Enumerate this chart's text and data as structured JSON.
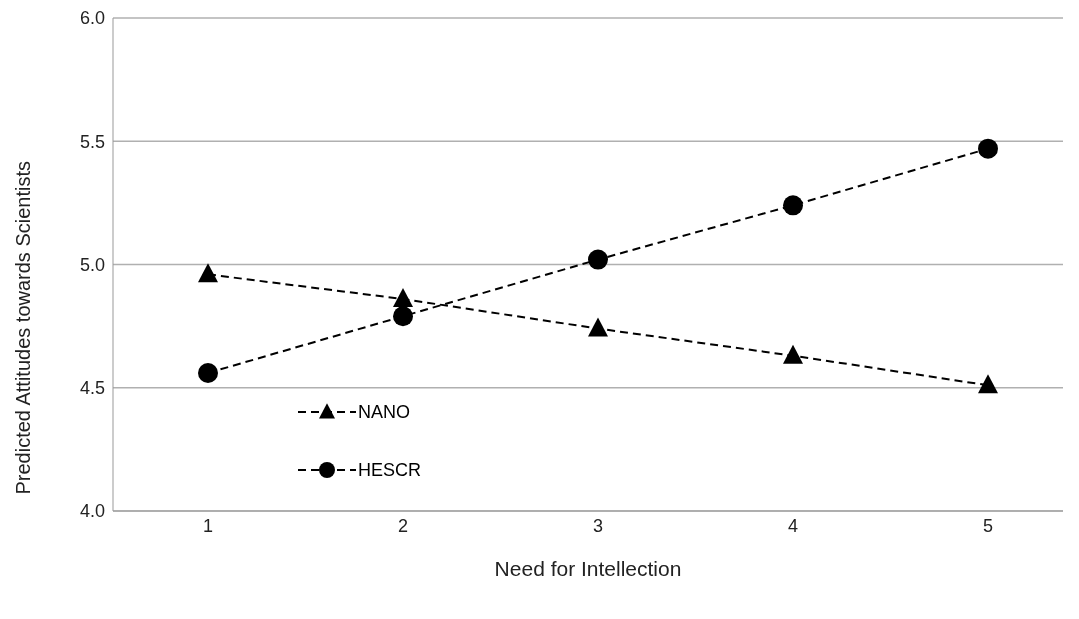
{
  "chart_data": {
    "type": "line",
    "xlabel": "Need for Intellection",
    "ylabel": "Predicted Attitudes towards Scientists",
    "categories": [
      "1",
      "2",
      "3",
      "4",
      "5"
    ],
    "series": [
      {
        "name": "NANO",
        "color": "#000000",
        "marker": "triangle",
        "values": [
          4.96,
          4.86,
          4.74,
          4.63,
          4.51
        ]
      },
      {
        "name": "HESCR",
        "color": "#000000",
        "marker": "circle",
        "values": [
          4.56,
          4.79,
          5.02,
          5.24,
          5.47
        ]
      }
    ],
    "ylim": [
      4.0,
      6.0
    ],
    "yticks": [
      {
        "value": 4.0,
        "label": "4.0"
      },
      {
        "value": 4.5,
        "label": "4.5"
      },
      {
        "value": 5.0,
        "label": "5.0"
      },
      {
        "value": 5.5,
        "label": "5.5"
      },
      {
        "value": 6.0,
        "label": "6.0"
      }
    ],
    "grid": "y",
    "legend": "bottom left",
    "line_style": "dashed"
  }
}
